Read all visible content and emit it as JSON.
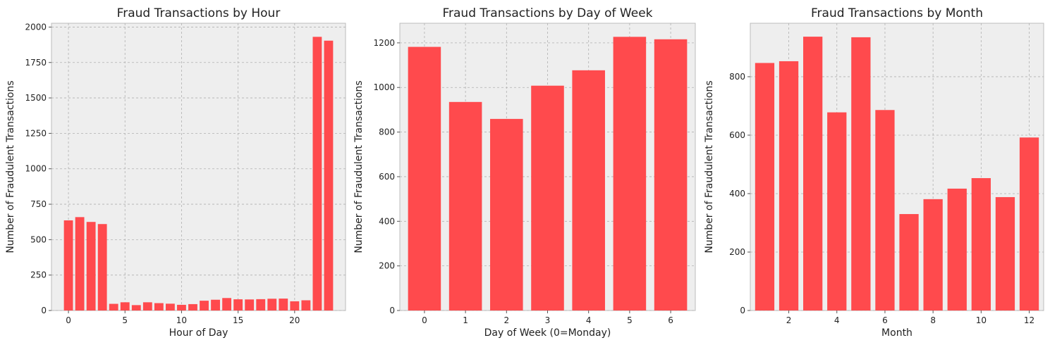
{
  "chart_data": [
    {
      "type": "bar",
      "title": "Fraud Transactions by Hour",
      "xlabel": "Hour of Day",
      "ylabel": "Number of Fraudulent Transactions",
      "x": [
        0,
        1,
        2,
        3,
        4,
        5,
        6,
        7,
        8,
        9,
        10,
        11,
        12,
        13,
        14,
        15,
        16,
        17,
        18,
        19,
        20,
        21,
        22,
        23
      ],
      "values": [
        636,
        659,
        625,
        610,
        47,
        58,
        38,
        58,
        52,
        48,
        40,
        45,
        69,
        76,
        88,
        79,
        78,
        80,
        83,
        84,
        65,
        72,
        1931,
        1904
      ],
      "xlim": [
        -1.5,
        24.5
      ],
      "ylim": [
        0,
        2027
      ],
      "xticks": [
        0,
        5,
        10,
        15,
        20
      ],
      "yticks": [
        0,
        250,
        500,
        750,
        1000,
        1250,
        1500,
        1750,
        2000
      ],
      "grid": true,
      "color": "#ff4a4d"
    },
    {
      "type": "bar",
      "title": "Fraud Transactions by Day of Week",
      "xlabel": "Day of Week (0=Monday)",
      "ylabel": "Number of Fraudulent Transactions",
      "x": [
        0,
        1,
        2,
        3,
        4,
        5,
        6
      ],
      "values": [
        1182,
        935,
        859,
        1008,
        1077,
        1227,
        1216
      ],
      "xlim": [
        -0.6,
        6.6
      ],
      "ylim": [
        0,
        1288
      ],
      "xticks": [
        0,
        1,
        2,
        3,
        4,
        5,
        6
      ],
      "yticks": [
        0,
        200,
        400,
        600,
        800,
        1000,
        1200
      ],
      "grid": true,
      "color": "#ff4a4d"
    },
    {
      "type": "bar",
      "title": "Fraud Transactions by Month",
      "xlabel": "Month",
      "ylabel": "Number of Fraudulent Transactions",
      "x": [
        1,
        2,
        3,
        4,
        5,
        6,
        7,
        8,
        9,
        10,
        11,
        12
      ],
      "values": [
        847,
        853,
        937,
        678,
        935,
        686,
        330,
        381,
        417,
        453,
        388,
        592
      ],
      "xlim": [
        0.4,
        12.6
      ],
      "ylim": [
        0,
        983
      ],
      "xticks": [
        2,
        4,
        6,
        8,
        10,
        12
      ],
      "yticks": [
        0,
        200,
        400,
        600,
        800
      ],
      "grid": true,
      "color": "#ff4a4d"
    }
  ]
}
